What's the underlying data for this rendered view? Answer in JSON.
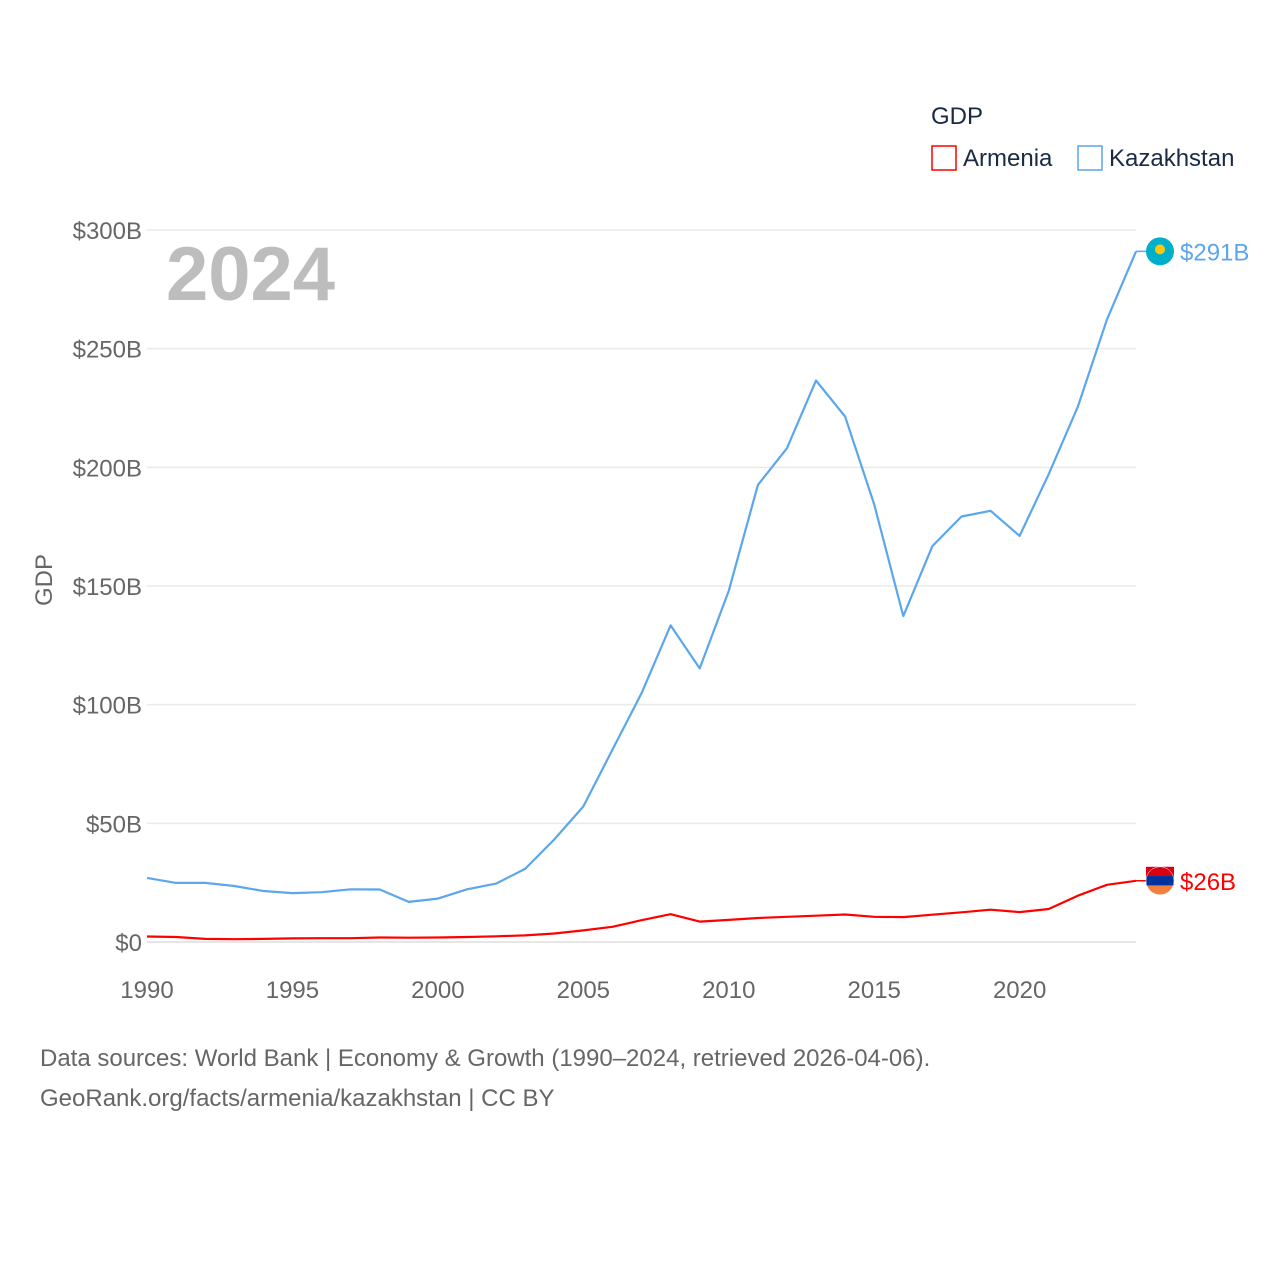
{
  "chart_data": {
    "type": "line",
    "title": "",
    "year_label": "2024",
    "xlabel": "",
    "ylabel": "GDP",
    "xlim": [
      1990,
      2024
    ],
    "ylim": [
      0,
      300
    ],
    "x_ticks": [
      1990,
      1995,
      2000,
      2005,
      2010,
      2015,
      2020
    ],
    "y_ticks": [
      0,
      50,
      100,
      150,
      200,
      250,
      300
    ],
    "y_tick_labels": [
      "$0",
      "$50B",
      "$100B",
      "$150B",
      "$200B",
      "$250B",
      "$300B"
    ],
    "grid": true,
    "legend": {
      "title": "GDP",
      "position": "top-right",
      "entries": [
        "Armenia",
        "Kazakhstan"
      ]
    },
    "x": [
      1990,
      1991,
      1992,
      1993,
      1994,
      1995,
      1996,
      1997,
      1998,
      1999,
      2000,
      2001,
      2002,
      2003,
      2004,
      2005,
      2006,
      2007,
      2008,
      2009,
      2010,
      2011,
      2012,
      2013,
      2014,
      2015,
      2016,
      2017,
      2018,
      2019,
      2020,
      2021,
      2022,
      2023,
      2024
    ],
    "series": [
      {
        "name": "Armenia",
        "color": "#ff0000",
        "end_label": "$26B",
        "values": [
          2.3,
          2.1,
          1.3,
          1.2,
          1.3,
          1.5,
          1.6,
          1.6,
          1.9,
          1.8,
          1.9,
          2.1,
          2.4,
          2.8,
          3.6,
          4.9,
          6.4,
          9.2,
          11.7,
          8.6,
          9.3,
          10.1,
          10.6,
          11.1,
          11.6,
          10.6,
          10.5,
          11.5,
          12.5,
          13.6,
          12.6,
          13.9,
          19.5,
          24.1,
          25.8
        ]
      },
      {
        "name": "Kazakhstan",
        "color": "#5ba6ec",
        "end_label": "$291B",
        "values": [
          27,
          24.9,
          24.9,
          23.6,
          21.5,
          20.6,
          21,
          22.2,
          22.1,
          16.9,
          18.3,
          22.2,
          24.6,
          30.8,
          43.2,
          57.1,
          81,
          104.8,
          133.4,
          115.3,
          148,
          192.6,
          208,
          236.6,
          221.4,
          184.4,
          137.3,
          166.8,
          179.3,
          181.7,
          171.1,
          197.1,
          225.5,
          262.2,
          291
        ]
      }
    ]
  },
  "footer": {
    "line1": "Data sources: World Bank | Economy & Growth (1990–2024, retrieved 2026-04-06).",
    "line2": "GeoRank.org/facts/armenia/kazakhstan | CC BY"
  }
}
